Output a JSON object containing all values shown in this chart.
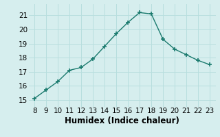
{
  "x": [
    8,
    9,
    10,
    11,
    12,
    13,
    14,
    15,
    16,
    17,
    18,
    19,
    20,
    21,
    22,
    23
  ],
  "y": [
    15.1,
    15.7,
    16.3,
    17.1,
    17.3,
    17.9,
    18.8,
    19.7,
    20.5,
    21.2,
    21.1,
    19.3,
    18.6,
    18.2,
    17.8,
    17.5
  ],
  "xlabel": "Humidex (Indice chaleur)",
  "ylim": [
    14.5,
    21.8
  ],
  "xlim": [
    7.5,
    23.5
  ],
  "yticks": [
    15,
    16,
    17,
    18,
    19,
    20,
    21
  ],
  "xticks": [
    8,
    9,
    10,
    11,
    12,
    13,
    14,
    15,
    16,
    17,
    18,
    19,
    20,
    21,
    22,
    23
  ],
  "line_color": "#1a7a6e",
  "marker_color": "#1a7a6e",
  "bg_color": "#d6eeee",
  "grid_color": "#b8dede",
  "fig_bg": "#d6eeee",
  "tick_fontsize": 7.5,
  "xlabel_fontsize": 8.5
}
